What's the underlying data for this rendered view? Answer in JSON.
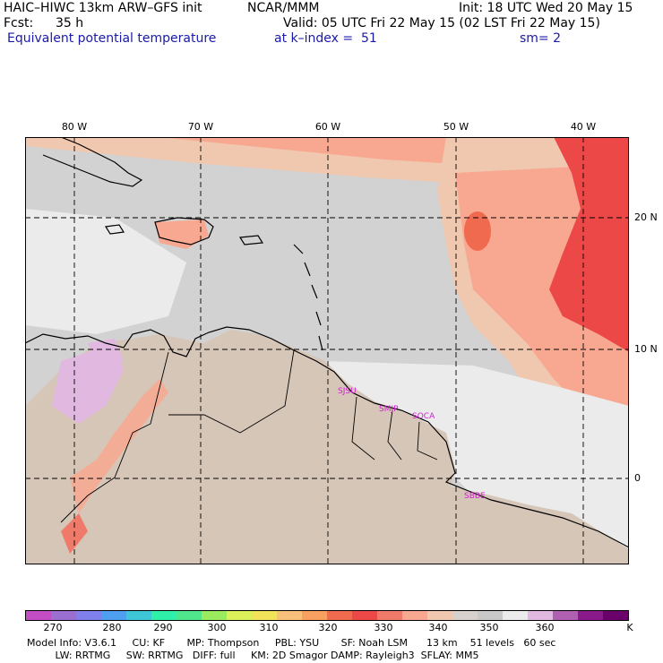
{
  "header": {
    "model": "HAIC–HIWC 13km ARW–GFS init",
    "org": "NCAR/MMM",
    "init": "Init: 18 UTC Wed 20 May 15",
    "fcst_label": "Fcst:",
    "fcst_value": "35 h",
    "valid": "Valid: 05 UTC Fri 22 May 15 (02 LST Fri 22 May 15)",
    "field": "Equivalent potential temperature",
    "level": "at k–index =  51",
    "smooth": "sm= 2"
  },
  "axes": {
    "lon_labels": [
      "80 W",
      "70 W",
      "60 W",
      "50 W",
      "40 W"
    ],
    "lat_labels": [
      "20 N",
      "10 N",
      "0"
    ]
  },
  "cities": [
    "SJSU",
    "SMJP",
    "SOCA",
    "SBBE"
  ],
  "colorbar": {
    "labels": [
      "270",
      "280",
      "290",
      "300",
      "310",
      "320",
      "330",
      "340",
      "350",
      "360"
    ],
    "unit": "K",
    "colors": [
      "#c34dc3",
      "#9b6fd0",
      "#8080ec",
      "#4f9ff0",
      "#3fc6d6",
      "#2ef0a8",
      "#50e68c",
      "#9aec5e",
      "#dcf05a",
      "#f2e25a",
      "#f8c07a",
      "#f8a060",
      "#f06a50",
      "#ec4848",
      "#f07a6a",
      "#f8a890",
      "#f0c8b0",
      "#d8d0cc",
      "#c8c8c8",
      "#ebebeb",
      "#e0b8e0",
      "#b060b0",
      "#8a1a8a",
      "#6a006a"
    ]
  },
  "footer": {
    "line1": "Model Info: V3.6.1     CU: KF       MP: Thompson     PBL: YSU       SF: Noah LSM      13 km    51 levels   60 sec",
    "line2": "         LW: RRTMG     SW: RRTMG   DIFF: full     KM: 2D Smagor DAMP: Rayleigh3  SFLAY: MM5"
  }
}
